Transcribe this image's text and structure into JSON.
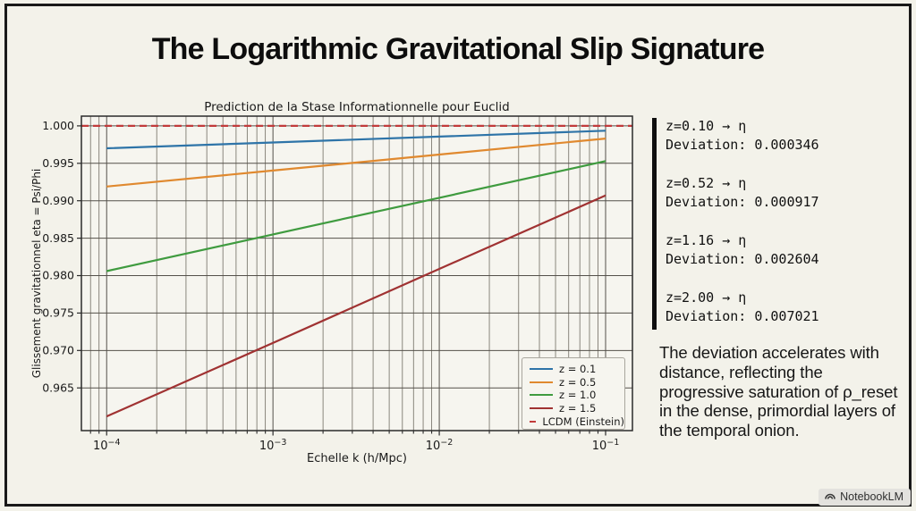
{
  "slide": {
    "title": "The Logarithmic Gravitational Slip Signature",
    "badge": {
      "label": "NotebookLM",
      "logo_icon": "notebooklm-logo"
    }
  },
  "chart_data": {
    "type": "line",
    "title": "Prediction de la Stase Informationnelle pour Euclid",
    "xlabel": "Echelle k (h/Mpc)",
    "ylabel": "Glissement gravitationnel eta = Psi/Phi",
    "x_scale": "log",
    "grid": true,
    "legend_position": "lower right",
    "xlim": [
      7.05e-05,
      0.145
    ],
    "ylim": [
      0.9593,
      1.0013
    ],
    "x_major_exponents": [
      -4,
      -3,
      -2,
      -1
    ],
    "y_ticks": [
      1.0,
      0.995,
      0.99,
      0.985,
      0.98,
      0.975,
      0.97,
      0.965
    ],
    "series": [
      {
        "name": "z = 0.1",
        "color": "#2e74a8",
        "dashed": false,
        "x": [
          0.0001,
          0.001,
          0.01,
          0.1
        ],
        "y": [
          0.997,
          0.99778,
          0.99857,
          0.99935
        ]
      },
      {
        "name": "z = 0.5",
        "color": "#e0892f",
        "dashed": false,
        "x": [
          0.0001,
          0.001,
          0.01,
          0.1
        ],
        "y": [
          0.9919,
          0.99403,
          0.99617,
          0.9983
        ]
      },
      {
        "name": "z = 1.0",
        "color": "#3f9b3f",
        "dashed": false,
        "x": [
          0.0001,
          0.001,
          0.01,
          0.1
        ],
        "y": [
          0.9806,
          0.9855,
          0.9904,
          0.9953
        ]
      },
      {
        "name": "z = 1.5",
        "color": "#a03232",
        "dashed": false,
        "x": [
          0.0001,
          0.001,
          0.01,
          0.1
        ],
        "y": [
          0.9612,
          0.971,
          0.9809,
          0.9907
        ]
      },
      {
        "name": "LCDM (Einstein)",
        "color": "#c23b3b",
        "dashed": true,
        "x": [
          7.05e-05,
          0.145
        ],
        "y": [
          1.0,
          1.0
        ]
      }
    ]
  },
  "side_panel": {
    "stats": [
      {
        "line1": "z=0.10 → η",
        "line2": "Deviation: 0.000346"
      },
      {
        "line1": "z=0.52 → η",
        "line2": "Deviation: 0.000917"
      },
      {
        "line1": "z=1.16 → η",
        "line2": "Deviation: 0.002604"
      },
      {
        "line1": "z=2.00 → η",
        "line2": "Deviation: 0.007021"
      }
    ],
    "note": "The deviation accelerates with distance, reflecting the progressive saturation of ρ_reset in the dense, primordial layers of the temporal onion."
  }
}
